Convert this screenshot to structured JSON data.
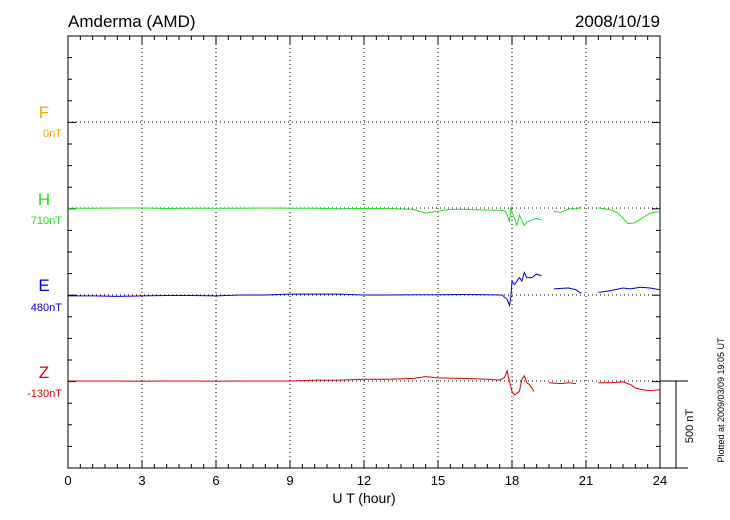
{
  "chart_data": {
    "type": "line",
    "title_left": "Amderma (AMD)",
    "title_right": "2008/10/19",
    "xlabel": "U T (hour)",
    "xlim": [
      0,
      24
    ],
    "xticks": [
      "0",
      "3",
      "6",
      "9",
      "12",
      "15",
      "18",
      "21",
      "24"
    ],
    "grid": true,
    "scale_bar_label": "500 nT",
    "footnote": "Plotted at 2009/03/09 19:05 UT",
    "series": [
      {
        "name": "F",
        "baseline_label": "0nT",
        "color": "#f0a800",
        "points": []
      },
      {
        "name": "H",
        "baseline_label": "710nT",
        "color": "#20e020",
        "points": [
          [
            0,
            -2
          ],
          [
            1,
            -2
          ],
          [
            2,
            0
          ],
          [
            3,
            0
          ],
          [
            4,
            -3
          ],
          [
            5,
            -1
          ],
          [
            6,
            -2
          ],
          [
            7,
            -1
          ],
          [
            8,
            0
          ],
          [
            9,
            -2
          ],
          [
            10,
            -2
          ],
          [
            11,
            -4
          ],
          [
            12,
            -3
          ],
          [
            13,
            -3
          ],
          [
            14,
            -8
          ],
          [
            14.5,
            -30
          ],
          [
            15,
            -18
          ],
          [
            15.5,
            -8
          ],
          [
            16,
            -8
          ],
          [
            17,
            -12
          ],
          [
            17.4,
            -12
          ],
          [
            17.7,
            -15
          ],
          [
            17.8,
            -40
          ],
          [
            17.9,
            -80
          ],
          [
            17.95,
            10
          ],
          [
            18,
            -20
          ],
          [
            18.1,
            -60
          ],
          [
            18.2,
            -100
          ],
          [
            18.3,
            -40
          ],
          [
            18.5,
            -100
          ],
          [
            18.6,
            -80
          ],
          [
            18.8,
            -70
          ],
          [
            19.0,
            -60
          ],
          [
            19.2,
            -70
          ],
          null,
          [
            19.7,
            -20
          ],
          [
            20.0,
            -25
          ],
          [
            20.3,
            -5
          ],
          [
            20.6,
            -5
          ],
          [
            20.8,
            5
          ],
          null,
          [
            21.5,
            0
          ],
          [
            22.0,
            -10
          ],
          [
            22.3,
            -30
          ],
          [
            22.5,
            -60
          ],
          [
            22.7,
            -90
          ],
          [
            23.0,
            -85
          ],
          [
            23.3,
            -55
          ],
          [
            23.6,
            -30
          ],
          [
            24,
            -20
          ]
        ]
      },
      {
        "name": "E",
        "baseline_label": "480nT",
        "color": "#0000d0",
        "points": [
          [
            0,
            -5
          ],
          [
            1,
            -5
          ],
          [
            2,
            -8
          ],
          [
            3,
            -5
          ],
          [
            4,
            -3
          ],
          [
            5,
            -3
          ],
          [
            6,
            -5
          ],
          [
            7,
            0
          ],
          [
            8,
            0
          ],
          [
            9,
            5
          ],
          [
            10,
            5
          ],
          [
            11,
            5
          ],
          [
            12,
            0
          ],
          [
            13,
            0
          ],
          [
            14,
            2
          ],
          [
            15,
            2
          ],
          [
            16,
            3
          ],
          [
            17,
            2
          ],
          [
            17.6,
            0
          ],
          [
            17.8,
            -25
          ],
          [
            17.9,
            -60
          ],
          [
            17.95,
            -15
          ],
          [
            18,
            80
          ],
          [
            18.1,
            60
          ],
          [
            18.3,
            100
          ],
          [
            18.4,
            80
          ],
          [
            18.5,
            130
          ],
          [
            18.6,
            100
          ],
          [
            18.8,
            100
          ],
          [
            19.0,
            120
          ],
          [
            19.2,
            110
          ],
          null,
          [
            19.7,
            35
          ],
          [
            20.0,
            38
          ],
          [
            20.3,
            40
          ],
          [
            20.6,
            30
          ],
          [
            20.8,
            10
          ],
          null,
          [
            21.5,
            15
          ],
          [
            22.0,
            25
          ],
          [
            22.5,
            40
          ],
          [
            22.8,
            35
          ],
          [
            23.2,
            45
          ],
          [
            23.6,
            40
          ],
          [
            24,
            30
          ]
        ]
      },
      {
        "name": "Z",
        "baseline_label": "-130nT",
        "color": "#e00000",
        "points": [
          [
            0,
            0
          ],
          [
            1,
            0
          ],
          [
            2,
            0
          ],
          [
            3,
            -2
          ],
          [
            4,
            0
          ],
          [
            5,
            0
          ],
          [
            6,
            -2
          ],
          [
            7,
            0
          ],
          [
            8,
            0
          ],
          [
            9,
            0
          ],
          [
            10,
            5
          ],
          [
            11,
            5
          ],
          [
            12,
            10
          ],
          [
            13,
            10
          ],
          [
            14,
            15
          ],
          [
            14.5,
            25
          ],
          [
            15,
            18
          ],
          [
            16,
            15
          ],
          [
            17,
            10
          ],
          [
            17.5,
            5
          ],
          [
            17.7,
            20
          ],
          [
            17.8,
            60
          ],
          [
            17.85,
            25
          ],
          [
            18,
            -60
          ],
          [
            18.1,
            -80
          ],
          [
            18.2,
            -70
          ],
          [
            18.3,
            -60
          ],
          [
            18.4,
            10
          ],
          [
            18.5,
            30
          ],
          [
            18.6,
            -10
          ],
          [
            18.7,
            -20
          ],
          [
            18.9,
            -60
          ],
          null,
          [
            19.5,
            -10
          ],
          [
            20.0,
            -15
          ],
          [
            20.3,
            -10
          ],
          [
            20.6,
            -15
          ],
          null,
          [
            21.5,
            -10
          ],
          [
            22.0,
            -10
          ],
          [
            22.5,
            -5
          ],
          [
            22.8,
            -20
          ],
          [
            23.0,
            -40
          ],
          [
            23.3,
            -50
          ],
          [
            23.6,
            -55
          ],
          [
            24,
            -50
          ]
        ]
      }
    ]
  }
}
